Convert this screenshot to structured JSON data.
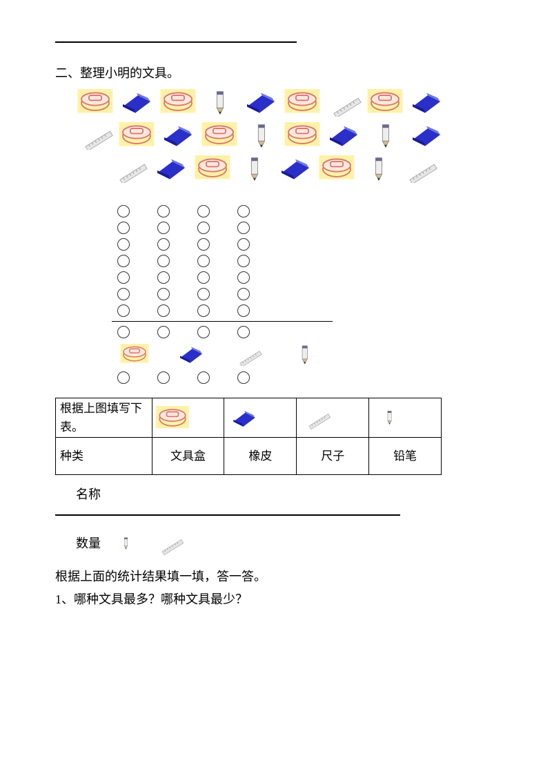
{
  "colors": {
    "pencilbox_body": "#d9766a",
    "pencilbox_bg": "#fff2a8",
    "eraser_body": "#2a2fc9",
    "eraser_light": "#6b76f0",
    "ruler": "#c9c9c9",
    "pencil_band": "#6a6a8f",
    "pencil_tip": "#333333",
    "icon_bg": "#fff2a8"
  },
  "section": {
    "title": "二、整理小明的文具。"
  },
  "rows": [
    [
      "pencilbox",
      "eraser",
      "pencilbox",
      "pencil",
      "eraser",
      "pencilbox",
      "ruler",
      "pencilbox",
      "eraser"
    ],
    [
      "ruler",
      "pencilbox",
      "eraser",
      "pencilbox",
      "pencil",
      "pencilbox",
      "eraser",
      "pencil",
      "eraser"
    ],
    [
      "ruler",
      "eraser",
      "pencilbox",
      "pencil",
      "eraser",
      "pencilbox",
      "pencil",
      "ruler"
    ]
  ],
  "circle_grid": {
    "columns": 4,
    "section_top_rows": 7,
    "section_mid_rows": 1,
    "category_icons": [
      "pencilbox",
      "eraser",
      "ruler",
      "pencil"
    ],
    "section_bottom_rows": 1
  },
  "table": {
    "caption": "根据上图填写下表。",
    "header_first": "种类",
    "categories": [
      "文具盒",
      "橡皮",
      "尺子",
      "铅笔"
    ],
    "icons": [
      "pencilbox",
      "eraser",
      "ruler",
      "pencil"
    ]
  },
  "labels": {
    "name": "名称",
    "quantity": "数量"
  },
  "qty_icons": [
    "pencil",
    "ruler"
  ],
  "footer": {
    "instruction": "根据上面的统计结果填一填，答一答。",
    "q1": "1、哪种文具最多？哪种文具最少？"
  }
}
